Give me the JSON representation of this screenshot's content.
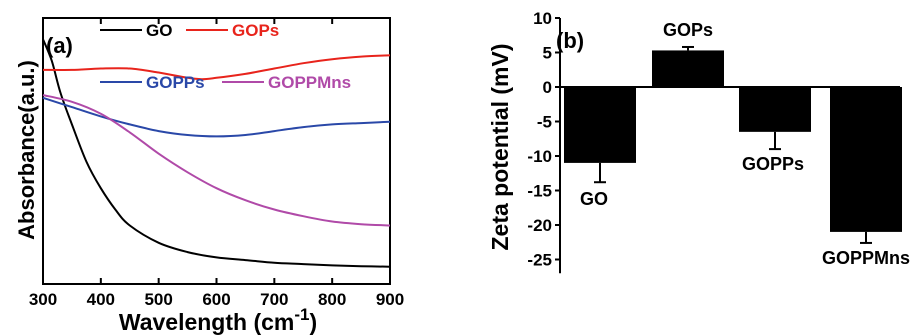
{
  "chart_data": [
    {
      "panel": "(a)",
      "type": "line",
      "xlabel": "Wavelength (cm",
      "xlabel_sup": "-1",
      "xlabel_close": ")",
      "ylabel": "Absorbance(a.u.)",
      "xlim": [
        300,
        900
      ],
      "ylim": [
        0,
        1
      ],
      "x_ticks": [
        300,
        400,
        500,
        600,
        700,
        800,
        900
      ],
      "y_ticks_shown": false,
      "grid": false,
      "legend_position": "top",
      "series": [
        {
          "name": "GO",
          "color": "#000000",
          "x": [
            300,
            315,
            330,
            350,
            375,
            400,
            425,
            450,
            500,
            550,
            600,
            650,
            700,
            750,
            800,
            850,
            900
          ],
          "y": [
            0.92,
            0.84,
            0.72,
            0.6,
            0.46,
            0.36,
            0.28,
            0.22,
            0.155,
            0.12,
            0.1,
            0.09,
            0.08,
            0.075,
            0.07,
            0.067,
            0.065
          ]
        },
        {
          "name": "GOPs",
          "color": "#e8241c",
          "x": [
            300,
            350,
            400,
            450,
            500,
            550,
            575,
            600,
            650,
            700,
            750,
            800,
            850,
            900
          ],
          "y": [
            0.805,
            0.805,
            0.81,
            0.81,
            0.795,
            0.775,
            0.77,
            0.775,
            0.79,
            0.81,
            0.83,
            0.845,
            0.855,
            0.86
          ]
        },
        {
          "name": "GOPPs",
          "color": "#2a48a8",
          "x": [
            300,
            350,
            400,
            450,
            500,
            550,
            600,
            650,
            700,
            750,
            800,
            850,
            900
          ],
          "y": [
            0.7,
            0.665,
            0.63,
            0.6,
            0.575,
            0.56,
            0.555,
            0.56,
            0.575,
            0.59,
            0.6,
            0.605,
            0.61
          ]
        },
        {
          "name": "GOPPMns",
          "color": "#b04aa8",
          "x": [
            300,
            350,
            400,
            450,
            500,
            550,
            600,
            650,
            700,
            750,
            800,
            850,
            900
          ],
          "y": [
            0.71,
            0.685,
            0.64,
            0.57,
            0.49,
            0.42,
            0.36,
            0.315,
            0.28,
            0.255,
            0.235,
            0.225,
            0.22
          ]
        }
      ]
    },
    {
      "panel": "(b)",
      "type": "bar",
      "ylabel": "Zeta potential (mV)",
      "ylim": [
        -27,
        10
      ],
      "y_ticks": [
        10,
        5,
        0,
        -5,
        -10,
        -15,
        -20,
        -25
      ],
      "grid": false,
      "bar_color": "#000000",
      "categories": [
        "GO",
        "GOPs",
        "GOPPs",
        "GOPPMns"
      ],
      "values": [
        -11,
        5.3,
        -6.5,
        -21
      ],
      "errors": [
        2.8,
        0.5,
        2.5,
        1.6
      ]
    }
  ]
}
